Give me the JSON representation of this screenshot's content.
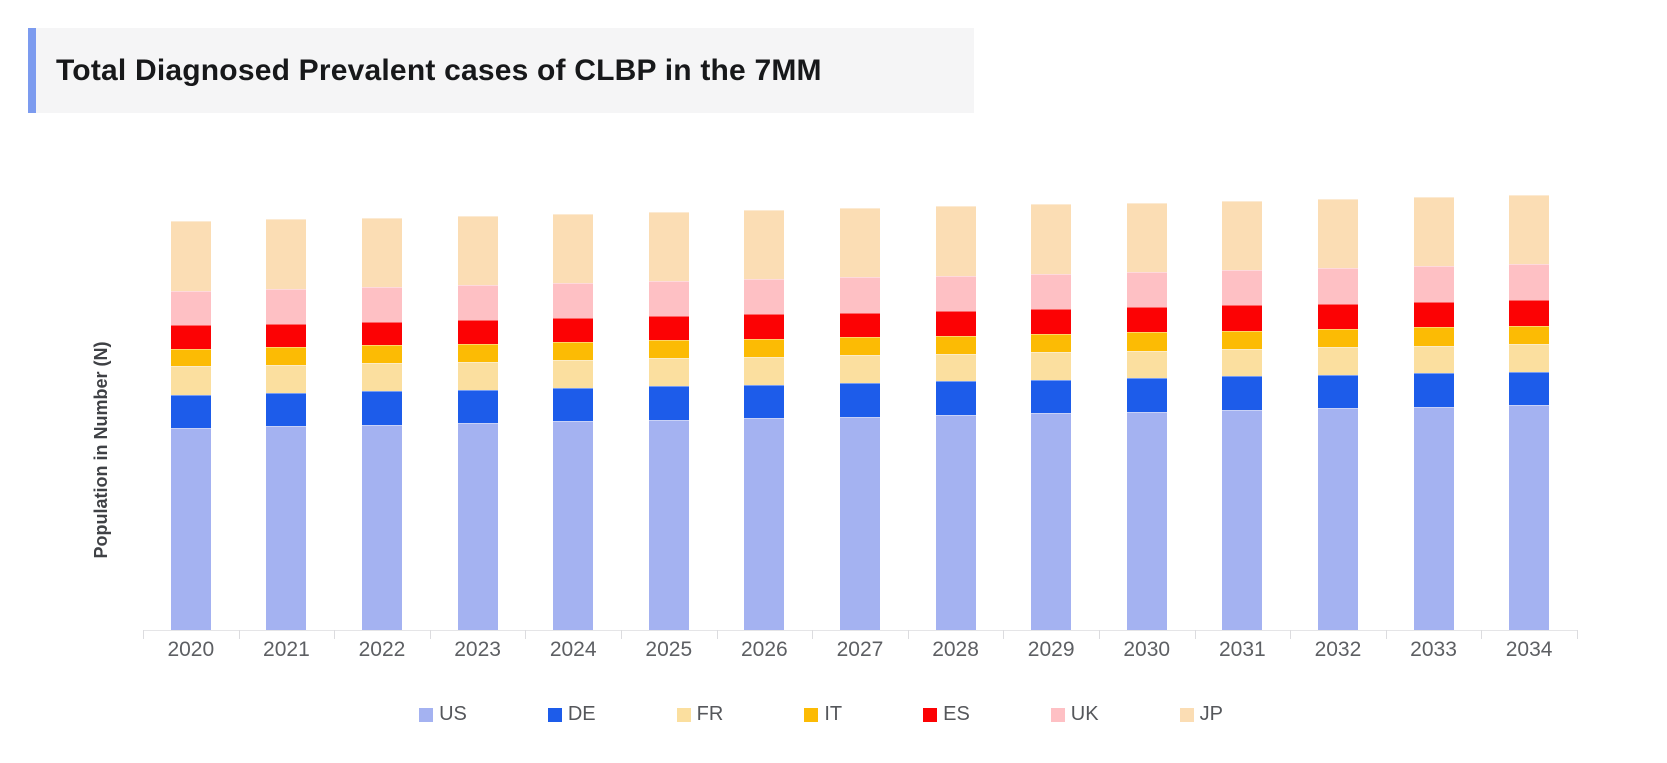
{
  "title": {
    "text": "Total Diagnosed Prevalent cases of CLBP in the 7MM"
  },
  "colors": {
    "title_accent": "#7c9bef",
    "title_background": "#f5f5f6",
    "title_text": "#17181a",
    "axis_line": "#e5e5e7",
    "axis_tick": "#dcdcdf",
    "x_label_text": "#5d5f63",
    "legend_text": "#55575b",
    "y_label_text": "#3f4145"
  },
  "chart_data": {
    "type": "bar",
    "stacked": true,
    "title": "Total Diagnosed Prevalent cases of CLBP in the 7MM",
    "xlabel": "",
    "ylabel": "Population in Number (N)",
    "grid": false,
    "legend_position": "bottom",
    "y_axis": {
      "tick_labels_shown": false,
      "units": "relative (no numeric scale shown)"
    },
    "categories": [
      "2020",
      "2021",
      "2022",
      "2023",
      "2024",
      "2025",
      "2026",
      "2027",
      "2028",
      "2029",
      "2030",
      "2031",
      "2032",
      "2033",
      "2034"
    ],
    "stack_order_bottom_to_top": [
      "US",
      "DE",
      "FR",
      "IT",
      "ES",
      "UK",
      "JP"
    ],
    "series": [
      {
        "name": "US",
        "color": "#a4b2f1",
        "values": [
          202.0,
          203.6,
          205.3,
          206.9,
          208.6,
          210.2,
          211.9,
          213.5,
          215.1,
          216.8,
          218.4,
          220.1,
          221.7,
          223.4,
          225.0
        ]
      },
      {
        "name": "DE",
        "color": "#1d5cea",
        "values": [
          33.5,
          33.5,
          33.5,
          33.5,
          33.5,
          33.5,
          33.5,
          33.5,
          33.5,
          33.5,
          33.5,
          33.5,
          33.5,
          33.5,
          33.5
        ]
      },
      {
        "name": "FR",
        "color": "#fbdf9f",
        "values": [
          28.4,
          28.3,
          28.2,
          28.1,
          28.1,
          28.0,
          27.9,
          27.8,
          27.7,
          27.6,
          27.5,
          27.5,
          27.4,
          27.3,
          27.2
        ]
      },
      {
        "name": "IT",
        "color": "#fcbb04",
        "values": [
          17.4,
          17.5,
          17.6,
          17.7,
          17.8,
          17.9,
          18.0,
          18.1,
          18.1,
          18.2,
          18.3,
          18.4,
          18.5,
          18.6,
          18.7
        ]
      },
      {
        "name": "ES",
        "color": "#fc0204",
        "values": [
          23.4,
          23.6,
          23.7,
          23.9,
          24.0,
          24.2,
          24.3,
          24.5,
          24.6,
          24.8,
          24.9,
          25.1,
          25.2,
          25.4,
          25.5
        ]
      },
      {
        "name": "UK",
        "color": "#fec0c4",
        "values": [
          34.0,
          34.2,
          34.3,
          34.5,
          34.7,
          34.9,
          35.0,
          35.2,
          35.4,
          35.5,
          35.7,
          35.9,
          36.1,
          36.2,
          36.4
        ]
      },
      {
        "name": "JP",
        "color": "#fbddb4",
        "values": [
          70.0,
          69.9,
          69.8,
          69.7,
          69.6,
          69.5,
          69.4,
          69.4,
          69.3,
          69.2,
          69.1,
          69.0,
          68.9,
          68.8,
          68.7
        ]
      }
    ]
  }
}
